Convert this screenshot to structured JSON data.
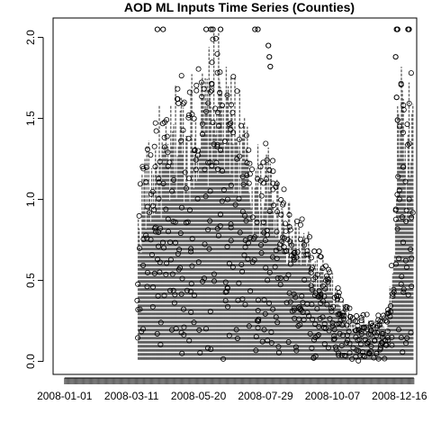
{
  "chart_data": {
    "type": "line",
    "title": "AOD ML Inputs Time Series (Counties)",
    "xlabel": "",
    "ylabel": "",
    "x_axis": {
      "type": "date",
      "range": [
        "2007-12-20",
        "2009-01-03"
      ],
      "tick_labels": [
        "2008-01-01",
        "2008-03-11",
        "2008-05-20",
        "2008-07-29",
        "2008-10-07",
        "2008-12-16"
      ]
    },
    "y_axis": {
      "range": [
        -0.08,
        2.12
      ],
      "tick_values": [
        0.0,
        0.5,
        1.0,
        1.5,
        2.0
      ],
      "tick_labels": [
        "0.0",
        "0.5",
        "1.0",
        "1.5",
        "2.0"
      ]
    },
    "grid": false,
    "legend": "none",
    "colors": {
      "line": "#4d4d4d",
      "points": "#000000",
      "background": "#ffffff"
    },
    "envelope": {
      "description_series": "upper envelope of daily AOD values across counties",
      "dates": [
        "2008-03-18",
        "2008-03-25",
        "2008-04-01",
        "2008-04-08",
        "2008-04-15",
        "2008-04-22",
        "2008-04-29",
        "2008-05-06",
        "2008-05-13",
        "2008-05-20",
        "2008-05-27",
        "2008-06-03",
        "2008-06-10",
        "2008-06-17",
        "2008-06-24",
        "2008-07-01",
        "2008-07-08",
        "2008-07-15",
        "2008-07-22",
        "2008-07-29",
        "2008-08-05",
        "2008-08-12",
        "2008-08-19",
        "2008-08-26",
        "2008-09-02",
        "2008-09-09",
        "2008-09-16",
        "2008-09-23",
        "2008-09-30",
        "2008-10-07",
        "2008-10-14",
        "2008-10-21",
        "2008-10-28",
        "2008-11-04",
        "2008-11-11",
        "2008-11-18",
        "2008-11-25",
        "2008-12-02",
        "2008-12-09",
        "2008-12-16",
        "2008-12-23",
        "2008-12-30"
      ],
      "values": [
        1.0,
        1.4,
        1.36,
        1.6,
        1.48,
        1.6,
        1.82,
        1.7,
        1.82,
        1.9,
        1.82,
        2.05,
        2.05,
        1.82,
        1.82,
        1.82,
        1.54,
        1.36,
        1.36,
        1.36,
        1.29,
        1.2,
        1.05,
        0.95,
        0.9,
        0.88,
        0.7,
        0.68,
        0.6,
        0.55,
        0.45,
        0.35,
        0.3,
        0.28,
        0.3,
        0.25,
        0.3,
        0.28,
        0.6,
        2.05,
        1.5,
        2.05
      ]
    },
    "outlier_points": {
      "dates": [
        "2008-04-07",
        "2008-04-13",
        "2008-05-28",
        "2008-06-02",
        "2008-06-04",
        "2008-06-12",
        "2008-07-18",
        "2008-07-21",
        "2008-12-13",
        "2008-12-14",
        "2008-12-25",
        "2008-12-26",
        "2008-08-01",
        "2008-08-02",
        "2008-08-03",
        "2008-12-12",
        "2008-12-13",
        "2008-12-14",
        "2008-09-18",
        "2008-09-23",
        "2008-12-20"
      ],
      "values": [
        2.05,
        2.05,
        2.05,
        2.05,
        2.05,
        2.05,
        2.05,
        2.05,
        2.05,
        2.05,
        2.05,
        2.05,
        1.95,
        1.88,
        1.82,
        1.88,
        1.63,
        1.49,
        0.68,
        0.68,
        1.2
      ]
    }
  }
}
